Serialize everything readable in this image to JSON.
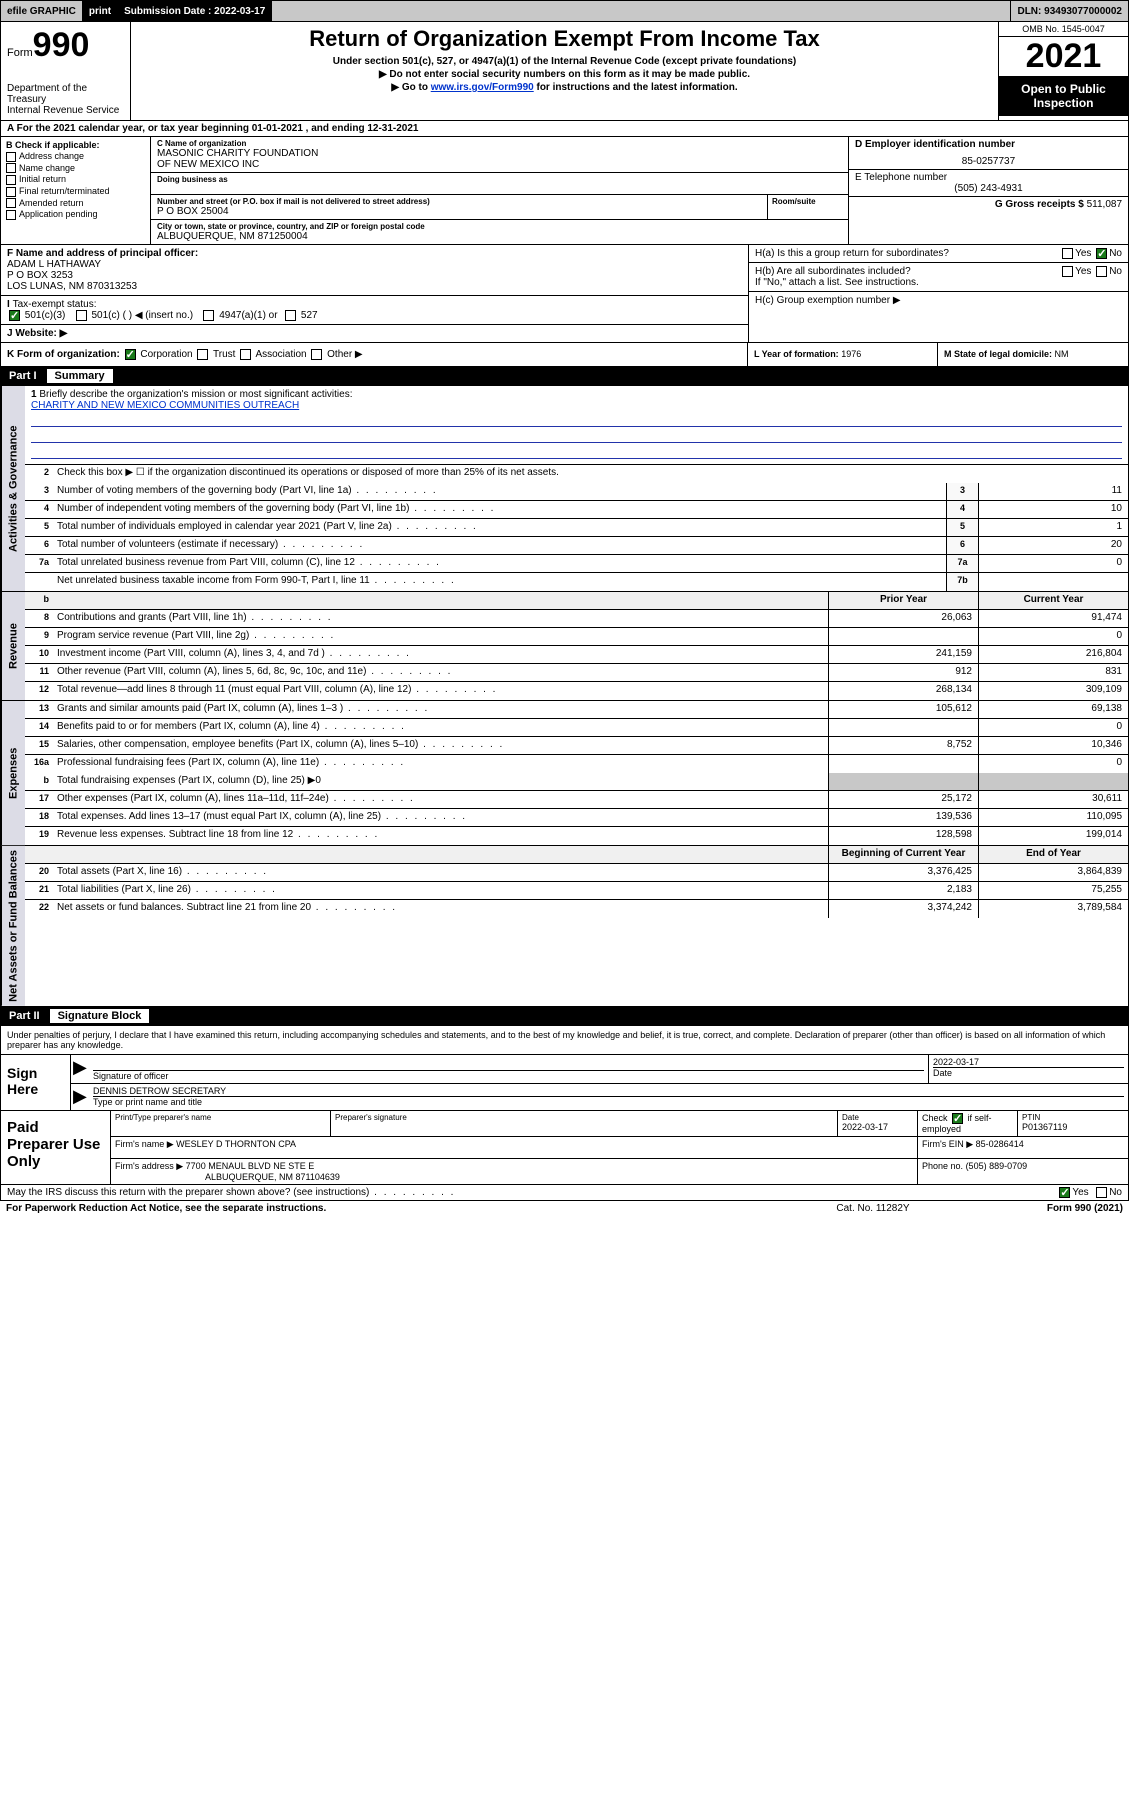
{
  "topbar": {
    "efile": "efile GRAPHIC",
    "print": "print",
    "sub_label": "Submission Date : 2022-03-17",
    "dln": "DLN: 93493077000002"
  },
  "header": {
    "form_prefix": "Form",
    "form_num": "990",
    "dept1": "Department of the Treasury",
    "dept2": "Internal Revenue Service",
    "title": "Return of Organization Exempt From Income Tax",
    "sub1": "Under section 501(c), 527, or 4947(a)(1) of the Internal Revenue Code (except private foundations)",
    "sub2": "Do not enter social security numbers on this form as it may be made public.",
    "sub3_pre": "Go to ",
    "sub3_link": "www.irs.gov/Form990",
    "sub3_post": " for instructions and the latest information.",
    "omb": "OMB No. 1545-0047",
    "year": "2021",
    "open1": "Open to Public",
    "open2": "Inspection"
  },
  "row_a": "For the 2021 calendar year, or tax year beginning 01-01-2021   , and ending 12-31-2021",
  "box_b": {
    "title": "B Check if applicable:",
    "opts": [
      "Address change",
      "Name change",
      "Initial return",
      "Final return/terminated",
      "Amended return",
      "Application pending"
    ]
  },
  "box_c": {
    "name_lbl": "C Name of organization",
    "name": "MASONIC CHARITY FOUNDATION\nOF NEW MEXICO INC",
    "dba_lbl": "Doing business as",
    "dba": "",
    "addr_lbl": "Number and street (or P.O. box if mail is not delivered to street address)",
    "room_lbl": "Room/suite",
    "addr": "P O BOX 25004",
    "city_lbl": "City or town, state or province, country, and ZIP or foreign postal code",
    "city": "ALBUQUERQUE, NM  871250004"
  },
  "box_d": {
    "ein_lbl": "D Employer identification number",
    "ein": "85-0257737",
    "phone_lbl": "E Telephone number",
    "phone": "(505) 243-4931",
    "gross_lbl": "G Gross receipts $",
    "gross": "511,087"
  },
  "box_f": {
    "lbl": "F Name and address of principal officer:",
    "name": "ADAM L HATHAWAY",
    "addr1": "P O BOX 3253",
    "addr2": "LOS LUNAS, NM  870313253"
  },
  "box_h": {
    "ha": "H(a)  Is this a group return for subordinates?",
    "hb": "H(b)  Are all subordinates included?",
    "hb2": "If \"No,\" attach a list. See instructions.",
    "hc": "H(c)  Group exemption number ▶",
    "yes": "Yes",
    "no": "No"
  },
  "box_i": {
    "lbl": "Tax-exempt status:",
    "o1": "501(c)(3)",
    "o2": "501(c) (  ) ◀ (insert no.)",
    "o3": "4947(a)(1) or",
    "o4": "527"
  },
  "box_j": {
    "lbl": "Website: ▶",
    "val": ""
  },
  "box_k": {
    "lbl": "K Form of organization:",
    "o1": "Corporation",
    "o2": "Trust",
    "o3": "Association",
    "o4": "Other ▶"
  },
  "box_l": {
    "lbl": "L Year of formation:",
    "val": "1976"
  },
  "box_m": {
    "lbl": "M State of legal domicile:",
    "val": "NM"
  },
  "part1": {
    "num": "Part I",
    "title": "Summary"
  },
  "vtabs": {
    "gov": "Activities & Governance",
    "rev": "Revenue",
    "exp": "Expenses",
    "net": "Net Assets or Fund Balances"
  },
  "mission": {
    "lbl": "Briefly describe the organization's mission or most significant activities:",
    "text": "CHARITY AND NEW MEXICO COMMUNITIES OUTREACH"
  },
  "l2": "Check this box ▶ ☐  if the organization discontinued its operations or disposed of more than 25% of its net assets.",
  "lines_gov": [
    {
      "n": "3",
      "d": "Number of voting members of the governing body (Part VI, line 1a)",
      "b": "3",
      "v": "11"
    },
    {
      "n": "4",
      "d": "Number of independent voting members of the governing body (Part VI, line 1b)",
      "b": "4",
      "v": "10"
    },
    {
      "n": "5",
      "d": "Total number of individuals employed in calendar year 2021 (Part V, line 2a)",
      "b": "5",
      "v": "1"
    },
    {
      "n": "6",
      "d": "Total number of volunteers (estimate if necessary)",
      "b": "6",
      "v": "20"
    },
    {
      "n": "7a",
      "d": "Total unrelated business revenue from Part VIII, column (C), line 12",
      "b": "7a",
      "v": "0"
    },
    {
      "n": "",
      "d": "Net unrelated business taxable income from Form 990-T, Part I, line 11",
      "b": "7b",
      "v": ""
    }
  ],
  "col_headers": {
    "b": "b",
    "py": "Prior Year",
    "cy": "Current Year",
    "boy": "Beginning of Current Year",
    "eoy": "End of Year"
  },
  "lines_rev": [
    {
      "n": "8",
      "d": "Contributions and grants (Part VIII, line 1h)",
      "py": "26,063",
      "cy": "91,474"
    },
    {
      "n": "9",
      "d": "Program service revenue (Part VIII, line 2g)",
      "py": "",
      "cy": "0"
    },
    {
      "n": "10",
      "d": "Investment income (Part VIII, column (A), lines 3, 4, and 7d )",
      "py": "241,159",
      "cy": "216,804"
    },
    {
      "n": "11",
      "d": "Other revenue (Part VIII, column (A), lines 5, 6d, 8c, 9c, 10c, and 11e)",
      "py": "912",
      "cy": "831"
    },
    {
      "n": "12",
      "d": "Total revenue—add lines 8 through 11 (must equal Part VIII, column (A), line 12)",
      "py": "268,134",
      "cy": "309,109"
    }
  ],
  "lines_exp": [
    {
      "n": "13",
      "d": "Grants and similar amounts paid (Part IX, column (A), lines 1–3 )",
      "py": "105,612",
      "cy": "69,138"
    },
    {
      "n": "14",
      "d": "Benefits paid to or for members (Part IX, column (A), line 4)",
      "py": "",
      "cy": "0"
    },
    {
      "n": "15",
      "d": "Salaries, other compensation, employee benefits (Part IX, column (A), lines 5–10)",
      "py": "8,752",
      "cy": "10,346"
    },
    {
      "n": "16a",
      "d": "Professional fundraising fees (Part IX, column (A), line 11e)",
      "py": "",
      "cy": "0"
    }
  ],
  "l16b": {
    "n": "b",
    "d": "Total fundraising expenses (Part IX, column (D), line 25) ▶0"
  },
  "lines_exp2": [
    {
      "n": "17",
      "d": "Other expenses (Part IX, column (A), lines 11a–11d, 11f–24e)",
      "py": "25,172",
      "cy": "30,611"
    },
    {
      "n": "18",
      "d": "Total expenses. Add lines 13–17 (must equal Part IX, column (A), line 25)",
      "py": "139,536",
      "cy": "110,095"
    },
    {
      "n": "19",
      "d": "Revenue less expenses. Subtract line 18 from line 12",
      "py": "128,598",
      "cy": "199,014"
    }
  ],
  "lines_net": [
    {
      "n": "20",
      "d": "Total assets (Part X, line 16)",
      "py": "3,376,425",
      "cy": "3,864,839"
    },
    {
      "n": "21",
      "d": "Total liabilities (Part X, line 26)",
      "py": "2,183",
      "cy": "75,255"
    },
    {
      "n": "22",
      "d": "Net assets or fund balances. Subtract line 21 from line 20",
      "py": "3,374,242",
      "cy": "3,789,584"
    }
  ],
  "part2": {
    "num": "Part II",
    "title": "Signature Block"
  },
  "sig": {
    "decl": "Under penalties of perjury, I declare that I have examined this return, including accompanying schedules and statements, and to the best of my knowledge and belief, it is true, correct, and complete. Declaration of preparer (other than officer) is based on all information of which preparer has any knowledge.",
    "here": "Sign Here",
    "sig_lbl": "Signature of officer",
    "date_lbl": "Date",
    "date": "2022-03-17",
    "name": "DENNIS DETROW SECRETARY",
    "name_lbl": "Type or print name and title"
  },
  "prep": {
    "title": "Paid Preparer Use Only",
    "h1": "Print/Type preparer's name",
    "h2": "Preparer's signature",
    "h3": "Date",
    "h3v": "2022-03-17",
    "h4a": "Check",
    "h4b": "if self-employed",
    "h5": "PTIN",
    "h5v": "P01367119",
    "firm_lbl": "Firm's name    ▶",
    "firm": "WESLEY D THORNTON CPA",
    "ein_lbl": "Firm's EIN ▶",
    "ein": "85-0286414",
    "addr_lbl": "Firm's address ▶",
    "addr1": "7700 MENAUL BLVD NE STE E",
    "addr2": "ALBUQUERQUE, NM  871104639",
    "phone_lbl": "Phone no.",
    "phone": "(505) 889-0709"
  },
  "footer": {
    "discuss": "May the IRS discuss this return with the preparer shown above? (see instructions)",
    "yes": "Yes",
    "no": "No",
    "pra": "For Paperwork Reduction Act Notice, see the separate instructions.",
    "cat": "Cat. No. 11282Y",
    "form": "Form 990 (2021)"
  }
}
